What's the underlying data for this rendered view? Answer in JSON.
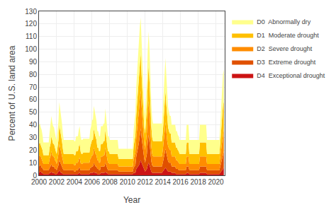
{
  "chart_data": {
    "type": "area",
    "stacked": true,
    "xlabel": "Year",
    "ylabel": "Percent of U.S. land area",
    "xlim": [
      2000,
      2021
    ],
    "ylim": [
      0,
      130
    ],
    "xticks": [
      2000,
      2002,
      2004,
      2006,
      2008,
      2010,
      2012,
      2014,
      2016,
      2018,
      2020
    ],
    "yticks": [
      0,
      10,
      20,
      30,
      40,
      50,
      60,
      70,
      80,
      90,
      100,
      110,
      120,
      130
    ],
    "grid": true,
    "legend": "right",
    "x": [
      2000.0,
      2000.1,
      2000.2,
      2000.3,
      2000.4,
      2000.5,
      2000.6,
      2000.7,
      2000.8,
      2000.9,
      2001.0,
      2001.1,
      2001.2,
      2001.3,
      2001.4,
      2001.5,
      2001.6,
      2001.7,
      2001.8,
      2001.9,
      2002.0,
      2002.1,
      2002.2,
      2002.3,
      2002.4,
      2002.5,
      2002.6,
      2002.7,
      2002.8,
      2002.9,
      2003.0,
      2003.1,
      2003.2,
      2003.3,
      2003.4,
      2003.5,
      2003.6,
      2003.7,
      2003.8,
      2003.9,
      2004.0,
      2004.1,
      2004.2,
      2004.3,
      2004.4,
      2004.5,
      2004.6,
      2004.7,
      2004.8,
      2004.9,
      2005.0,
      2005.1,
      2005.2,
      2005.3,
      2005.4,
      2005.5,
      2005.6,
      2005.7,
      2005.8,
      2005.9,
      2006.0,
      2006.1,
      2006.2,
      2006.3,
      2006.4,
      2006.5,
      2006.6,
      2006.7,
      2006.8,
      2006.9,
      2007.0,
      2007.1,
      2007.2,
      2007.3,
      2007.4,
      2007.5,
      2007.6,
      2007.7,
      2007.8,
      2007.9,
      2008.0,
      2008.1,
      2008.2,
      2008.3,
      2008.4,
      2008.5,
      2008.6,
      2008.7,
      2008.8,
      2008.9,
      2009.0,
      2009.1,
      2009.2,
      2009.3,
      2009.4,
      2009.5,
      2009.6,
      2009.7,
      2009.8,
      2009.9,
      2010.0,
      2010.1,
      2010.2,
      2010.3,
      2010.4,
      2010.5,
      2010.6,
      2010.7,
      2010.8,
      2010.9,
      2011.0,
      2011.1,
      2011.2,
      2011.3,
      2011.4,
      2011.5,
      2011.6,
      2011.7,
      2011.8,
      2011.9,
      2012.0,
      2012.1,
      2012.2,
      2012.3,
      2012.4,
      2012.5,
      2012.6,
      2012.7,
      2012.8,
      2012.9,
      2013.0,
      2013.1,
      2013.2,
      2013.3,
      2013.4,
      2013.5,
      2013.6,
      2013.7,
      2013.8,
      2013.9,
      2014.0,
      2014.1,
      2014.2,
      2014.3,
      2014.4,
      2014.5,
      2014.6,
      2014.7,
      2014.8,
      2014.9,
      2015.0,
      2015.1,
      2015.2,
      2015.3,
      2015.4,
      2015.5,
      2015.6,
      2015.7,
      2015.8,
      2015.9,
      2016.0,
      2016.1,
      2016.2,
      2016.3,
      2016.4,
      2016.5,
      2016.6,
      2016.7,
      2016.8,
      2016.9,
      2017.0,
      2017.1,
      2017.2,
      2017.3,
      2017.4,
      2017.5,
      2017.6,
      2017.7,
      2017.8,
      2017.9,
      2018.0,
      2018.1,
      2018.2,
      2018.3,
      2018.4,
      2018.5,
      2018.6,
      2018.7,
      2018.8,
      2018.9,
      2019.0,
      2019.1,
      2019.2,
      2019.3,
      2019.4,
      2019.5,
      2019.6,
      2019.7,
      2019.8,
      2019.9,
      2020.0,
      2020.1,
      2020.2,
      2020.3,
      2020.4,
      2020.5,
      2020.6,
      2020.7,
      2020.8,
      2020.9
    ],
    "series": [
      {
        "name": "D4  Exceptional drought",
        "color": "#CC1414",
        "values": [
          2,
          3,
          3,
          2,
          2,
          1,
          1,
          1,
          1,
          1,
          1,
          1,
          2,
          2,
          3,
          2,
          2,
          2,
          1,
          1,
          1,
          2,
          3,
          4,
          3,
          2,
          2,
          1,
          1,
          1,
          1,
          1,
          1,
          1,
          1,
          1,
          1,
          1,
          1,
          1,
          1,
          1,
          1,
          1,
          1,
          2,
          2,
          1,
          1,
          1,
          1,
          1,
          1,
          1,
          1,
          1,
          1,
          1,
          2,
          2,
          2,
          2,
          3,
          2,
          2,
          2,
          1,
          1,
          1,
          1,
          2,
          2,
          2,
          2,
          2,
          3,
          2,
          2,
          1,
          1,
          1,
          1,
          1,
          1,
          1,
          1,
          1,
          1,
          1,
          1,
          1,
          1,
          1,
          1,
          1,
          1,
          1,
          1,
          1,
          1,
          1,
          1,
          1,
          1,
          1,
          1,
          1,
          2,
          2,
          2,
          5,
          6,
          7,
          8,
          10,
          12,
          10,
          8,
          6,
          4,
          3,
          4,
          5,
          8,
          10,
          8,
          5,
          3,
          2,
          2,
          2,
          2,
          2,
          2,
          2,
          2,
          2,
          2,
          2,
          2,
          3,
          4,
          5,
          6,
          5,
          4,
          3,
          3,
          3,
          3,
          2,
          2,
          2,
          2,
          2,
          1,
          1,
          1,
          1,
          1,
          1,
          1,
          1,
          1,
          1,
          1,
          1,
          2,
          2,
          2,
          1,
          1,
          1,
          1,
          1,
          1,
          1,
          1,
          1,
          1,
          1,
          1,
          2,
          2,
          2,
          2,
          2,
          2,
          2,
          2,
          1,
          1,
          1,
          1,
          1,
          1,
          1,
          1,
          1,
          1,
          1,
          1,
          1,
          1,
          1,
          2,
          3,
          4,
          5,
          6
        ]
      },
      {
        "name": "D3  Extreme drought",
        "color": "#E05000",
        "values": [
          5,
          5,
          5,
          4,
          4,
          3,
          3,
          3,
          3,
          3,
          3,
          3,
          4,
          5,
          6,
          5,
          5,
          5,
          4,
          4,
          3,
          4,
          5,
          8,
          7,
          6,
          5,
          4,
          3,
          3,
          3,
          3,
          3,
          3,
          3,
          3,
          3,
          3,
          3,
          3,
          2,
          2,
          3,
          3,
          3,
          4,
          4,
          3,
          3,
          3,
          3,
          3,
          3,
          3,
          3,
          3,
          3,
          3,
          4,
          4,
          5,
          5,
          7,
          6,
          5,
          5,
          4,
          4,
          3,
          3,
          5,
          5,
          5,
          5,
          5,
          7,
          6,
          5,
          3,
          3,
          3,
          3,
          3,
          3,
          3,
          3,
          3,
          3,
          3,
          3,
          2,
          2,
          2,
          2,
          2,
          2,
          2,
          2,
          2,
          2,
          2,
          2,
          2,
          2,
          2,
          2,
          2,
          4,
          5,
          6,
          10,
          12,
          15,
          18,
          22,
          25,
          20,
          16,
          12,
          9,
          7,
          9,
          12,
          18,
          22,
          18,
          12,
          8,
          6,
          5,
          5,
          5,
          5,
          5,
          5,
          5,
          5,
          5,
          5,
          5,
          7,
          9,
          12,
          15,
          12,
          9,
          8,
          7,
          7,
          7,
          5,
          5,
          5,
          5,
          5,
          4,
          4,
          4,
          3,
          3,
          3,
          3,
          3,
          3,
          3,
          3,
          3,
          5,
          5,
          5,
          3,
          3,
          3,
          3,
          3,
          3,
          3,
          3,
          3,
          3,
          3,
          3,
          5,
          5,
          5,
          5,
          5,
          5,
          5,
          5,
          3,
          3,
          3,
          3,
          3,
          3,
          3,
          3,
          3,
          3,
          3,
          3,
          3,
          3,
          3,
          5,
          7,
          9,
          11,
          13
        ]
      },
      {
        "name": "D2  Severe drought",
        "color": "#FF8C00",
        "values": [
          8,
          8,
          7,
          7,
          6,
          5,
          5,
          5,
          5,
          5,
          5,
          5,
          7,
          8,
          10,
          9,
          8,
          8,
          7,
          6,
          5,
          7,
          9,
          13,
          12,
          10,
          9,
          7,
          5,
          5,
          5,
          5,
          5,
          5,
          5,
          5,
          5,
          5,
          5,
          5,
          5,
          5,
          6,
          6,
          6,
          7,
          8,
          6,
          5,
          5,
          6,
          6,
          6,
          6,
          6,
          6,
          6,
          6,
          7,
          8,
          9,
          9,
          12,
          11,
          10,
          9,
          7,
          7,
          6,
          6,
          8,
          8,
          8,
          9,
          9,
          12,
          10,
          9,
          6,
          6,
          5,
          5,
          5,
          5,
          5,
          5,
          5,
          5,
          5,
          5,
          4,
          4,
          4,
          4,
          4,
          4,
          4,
          4,
          4,
          4,
          4,
          4,
          4,
          4,
          4,
          4,
          4,
          7,
          9,
          10,
          15,
          18,
          22,
          25,
          28,
          30,
          25,
          20,
          15,
          12,
          10,
          13,
          17,
          23,
          27,
          23,
          17,
          12,
          9,
          8,
          8,
          8,
          8,
          8,
          8,
          8,
          8,
          8,
          8,
          8,
          10,
          13,
          17,
          21,
          17,
          14,
          12,
          11,
          10,
          10,
          8,
          8,
          8,
          8,
          8,
          7,
          7,
          6,
          6,
          5,
          5,
          5,
          5,
          5,
          5,
          5,
          5,
          8,
          8,
          8,
          5,
          5,
          5,
          5,
          5,
          5,
          5,
          5,
          5,
          5,
          5,
          5,
          8,
          8,
          8,
          8,
          8,
          8,
          8,
          8,
          5,
          5,
          5,
          5,
          5,
          5,
          5,
          5,
          5,
          5,
          5,
          5,
          5,
          5,
          5,
          8,
          11,
          14,
          17,
          18
        ]
      },
      {
        "name": "D1  Moderate drought",
        "color": "#FFC000",
        "values": [
          10,
          10,
          9,
          9,
          8,
          7,
          7,
          7,
          7,
          7,
          7,
          7,
          9,
          10,
          12,
          11,
          10,
          10,
          9,
          8,
          8,
          9,
          11,
          15,
          14,
          12,
          11,
          9,
          8,
          8,
          8,
          8,
          8,
          8,
          8,
          8,
          8,
          8,
          8,
          8,
          8,
          8,
          9,
          9,
          9,
          10,
          11,
          9,
          8,
          8,
          8,
          8,
          8,
          8,
          8,
          8,
          8,
          8,
          10,
          11,
          12,
          12,
          15,
          14,
          13,
          12,
          10,
          10,
          9,
          9,
          10,
          10,
          10,
          11,
          11,
          14,
          12,
          11,
          9,
          9,
          8,
          8,
          8,
          8,
          8,
          8,
          8,
          8,
          8,
          8,
          6,
          6,
          6,
          6,
          6,
          6,
          6,
          6,
          6,
          6,
          6,
          6,
          6,
          6,
          6,
          6,
          6,
          10,
          12,
          14,
          18,
          22,
          26,
          28,
          30,
          30,
          25,
          20,
          16,
          13,
          13,
          16,
          20,
          25,
          28,
          25,
          20,
          16,
          13,
          12,
          12,
          12,
          12,
          12,
          12,
          12,
          12,
          12,
          12,
          12,
          14,
          18,
          22,
          25,
          22,
          18,
          15,
          14,
          13,
          13,
          11,
          11,
          11,
          11,
          11,
          10,
          10,
          9,
          9,
          8,
          8,
          8,
          8,
          8,
          8,
          8,
          8,
          11,
          11,
          11,
          8,
          8,
          8,
          8,
          8,
          8,
          8,
          8,
          8,
          8,
          8,
          8,
          11,
          11,
          11,
          11,
          11,
          11,
          11,
          11,
          8,
          8,
          8,
          8,
          8,
          8,
          8,
          8,
          8,
          8,
          8,
          8,
          8,
          8,
          8,
          11,
          15,
          18,
          22,
          22
        ]
      },
      {
        "name": "D0  Abnormally dry",
        "color": "#FFFF8C",
        "values": [
          15,
          15,
          14,
          14,
          12,
          10,
          10,
          10,
          10,
          10,
          10,
          10,
          12,
          14,
          16,
          15,
          14,
          13,
          12,
          11,
          11,
          13,
          15,
          18,
          17,
          15,
          14,
          12,
          11,
          11,
          11,
          11,
          11,
          11,
          11,
          11,
          11,
          11,
          11,
          11,
          11,
          11,
          12,
          12,
          12,
          13,
          14,
          12,
          11,
          11,
          11,
          11,
          11,
          11,
          11,
          11,
          11,
          11,
          13,
          14,
          16,
          16,
          18,
          17,
          16,
          15,
          13,
          13,
          12,
          12,
          14,
          14,
          14,
          14,
          14,
          17,
          15,
          14,
          12,
          12,
          11,
          11,
          11,
          11,
          11,
          11,
          11,
          11,
          11,
          11,
          8,
          8,
          8,
          8,
          8,
          8,
          8,
          8,
          8,
          8,
          8,
          8,
          8,
          8,
          8,
          8,
          8,
          13,
          16,
          17,
          22,
          26,
          28,
          28,
          28,
          28,
          25,
          22,
          18,
          15,
          15,
          18,
          22,
          26,
          27,
          25,
          22,
          18,
          15,
          14,
          14,
          14,
          14,
          14,
          14,
          14,
          14,
          14,
          14,
          14,
          18,
          22,
          25,
          26,
          23,
          19,
          16,
          15,
          14,
          14,
          14,
          14,
          14,
          14,
          14,
          13,
          13,
          12,
          12,
          11,
          11,
          11,
          11,
          11,
          11,
          11,
          11,
          14,
          14,
          14,
          11,
          11,
          11,
          11,
          11,
          11,
          11,
          11,
          11,
          11,
          11,
          11,
          14,
          14,
          14,
          14,
          14,
          14,
          14,
          14,
          11,
          11,
          11,
          11,
          11,
          11,
          11,
          11,
          11,
          11,
          11,
          11,
          11,
          11,
          11,
          15,
          19,
          22,
          25,
          25
        ]
      }
    ]
  }
}
